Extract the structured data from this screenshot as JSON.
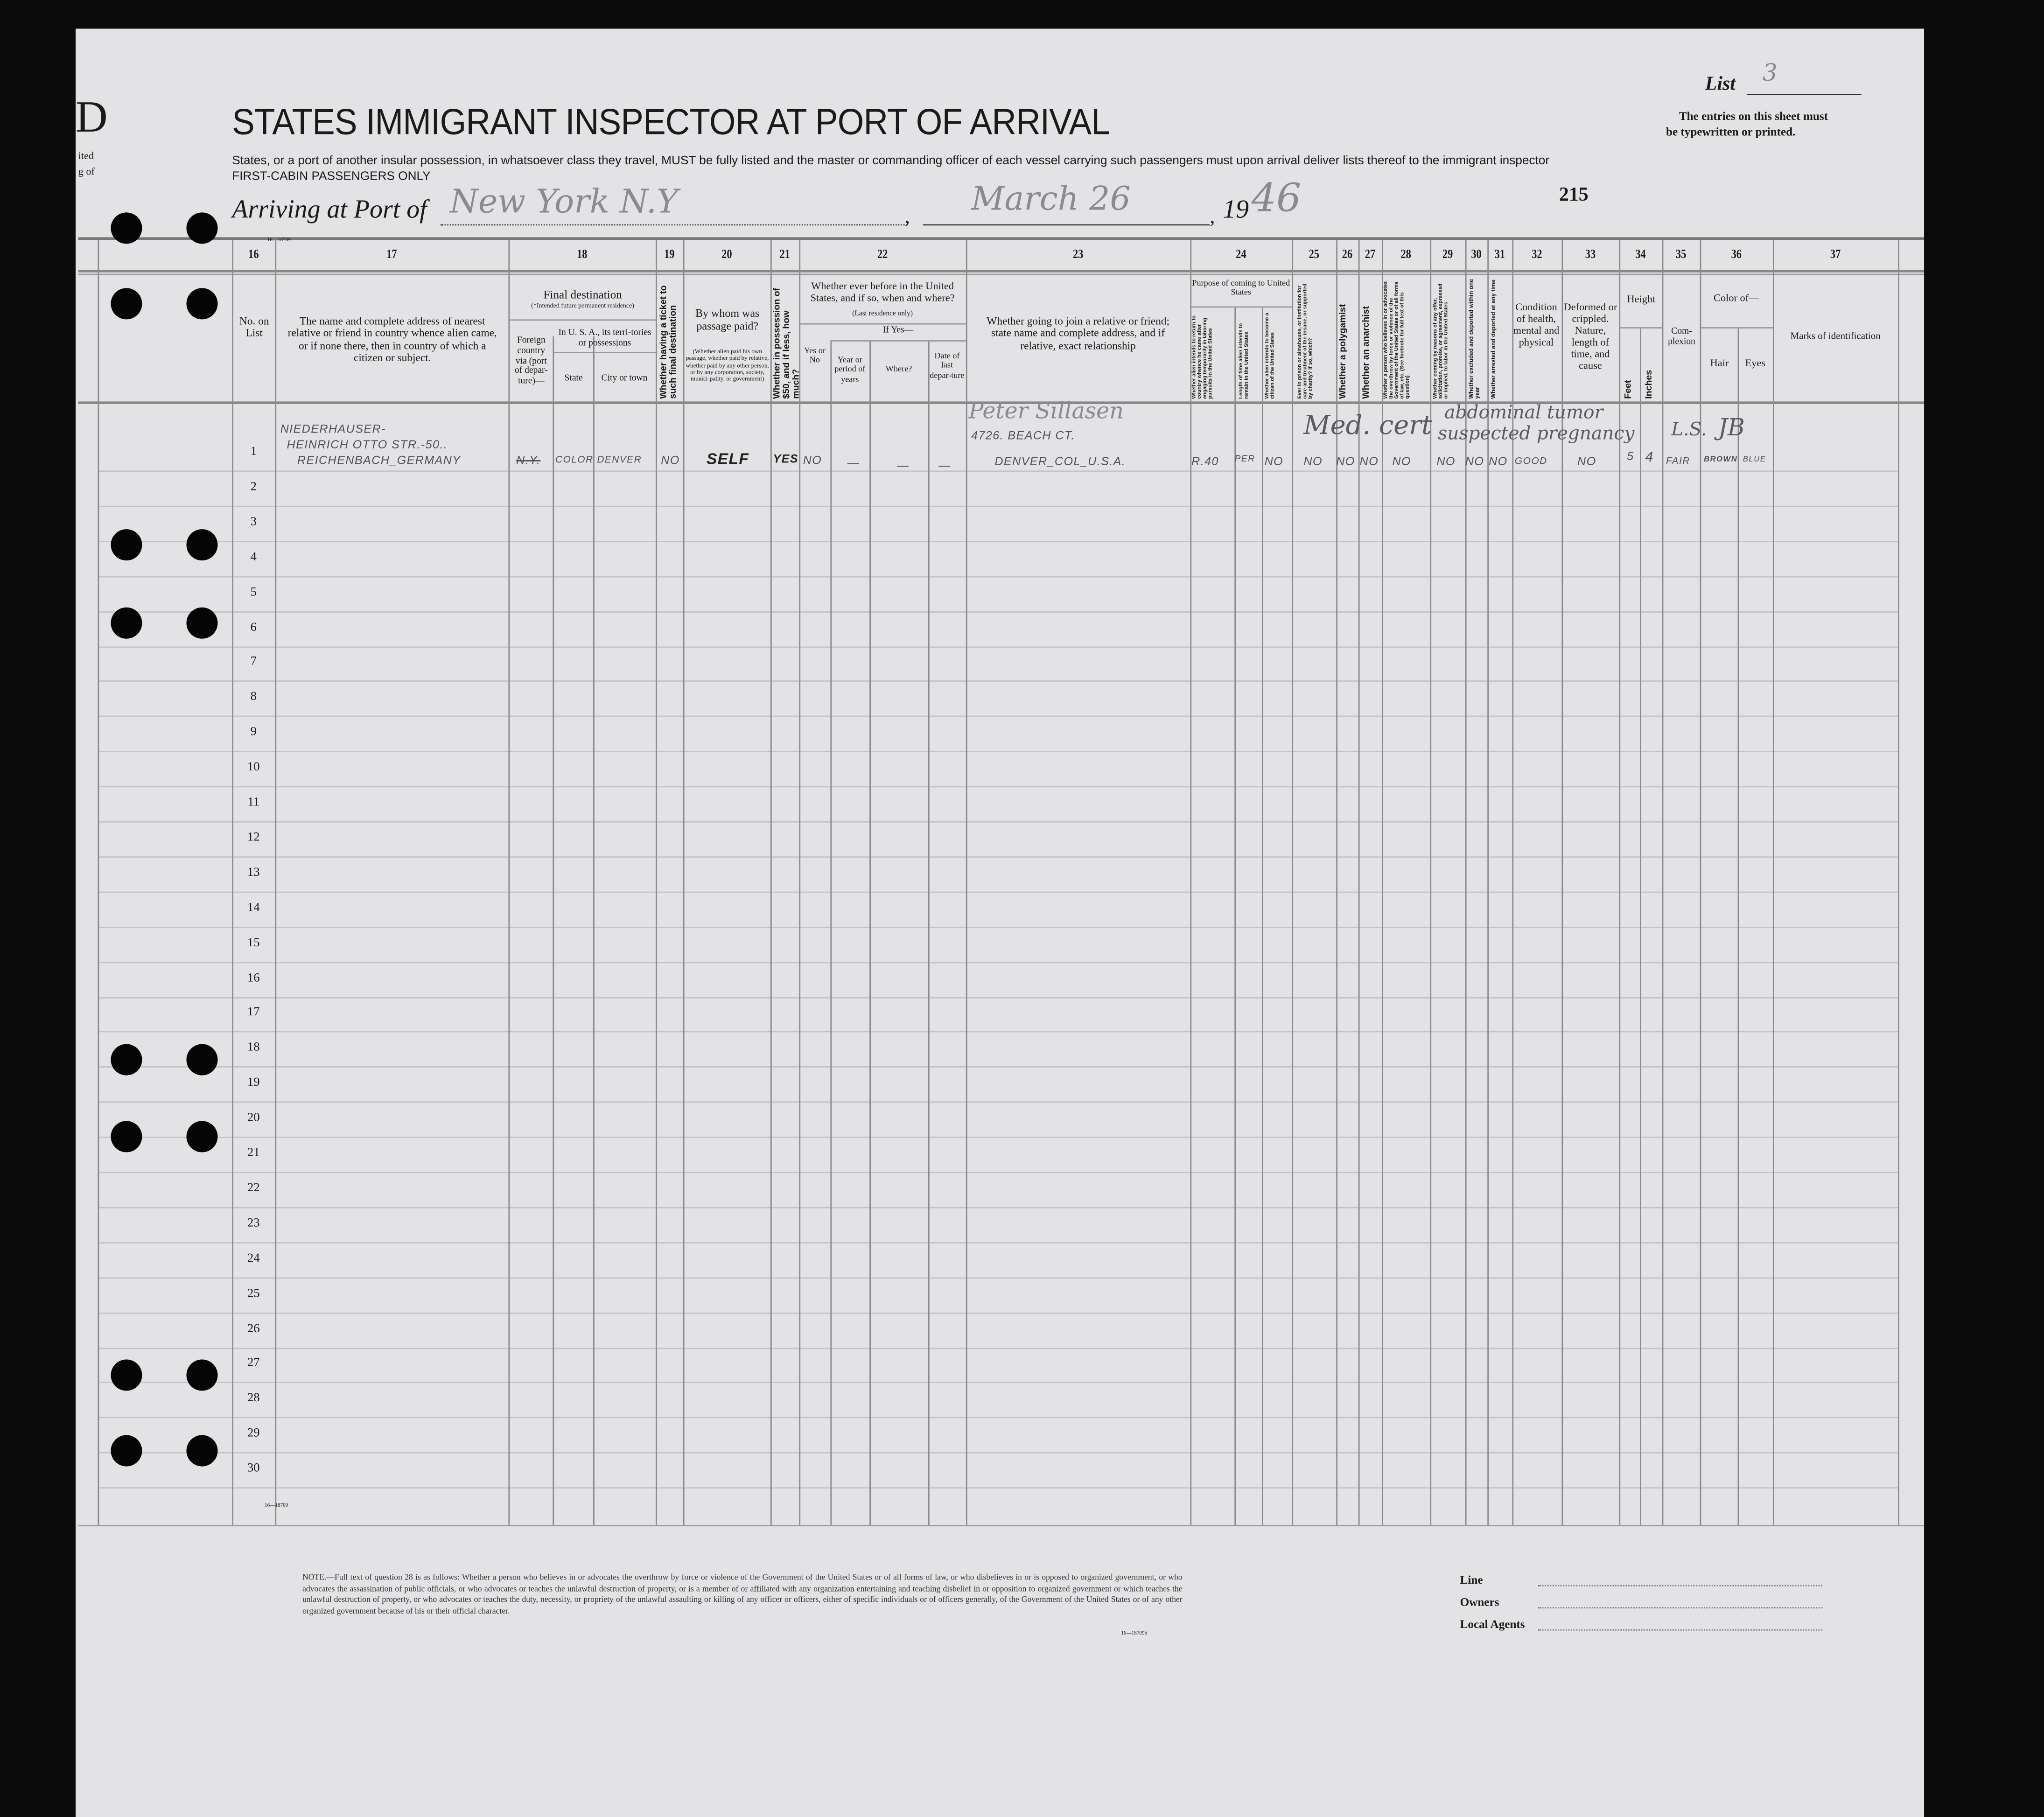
{
  "header": {
    "left_fragments": [
      "D",
      "ited",
      "g of"
    ],
    "title": "STATES IMMIGRANT INSPECTOR AT PORT OF ARRIVAL",
    "instruction": "States, or a port of another insular possession, in whatsoever class they travel, MUST be fully listed and the master or commanding officer of each vessel carrying such passengers must upon arrival deliver lists thereof to the immigrant inspector",
    "class_note": "FIRST-CABIN PASSENGERS ONLY",
    "list_label": "List",
    "list_number": "3",
    "entries_note_1": "The entries on this sheet must",
    "entries_note_2": "be typewritten or printed.",
    "arriving_label": "Arriving at Port of",
    "port": "New York N.Y",
    "date": "March 26",
    "year_prefix": "19",
    "year_suffix": "46",
    "sheet_number": "215",
    "form_code": "16—18709"
  },
  "columns": {
    "numbers": [
      "16",
      "17",
      "18",
      "19",
      "20",
      "21",
      "22",
      "23",
      "24",
      "25",
      "26",
      "27",
      "28",
      "29",
      "30",
      "31",
      "32",
      "33",
      "34",
      "35",
      "36",
      "37"
    ],
    "c16": "No. on List",
    "c17": "The name and complete address of nearest relative or friend in country whence alien came, or if none there, then in country of which a citizen or subject.",
    "c18_title": "Final destination",
    "c18_sub": "(*Intended future permanent residence)",
    "c18_foreign": "Foreign country via (port of depar-ture)—",
    "c18_usa": "In U. S. A., its terri-tories or possessions",
    "c18_state": "State",
    "c18_city": "City or town",
    "c19": "Whether having a ticket to such final destination",
    "c20_title": "By whom was passage paid?",
    "c20_sub": "(Whether alien paid his own passage, whether paid by relative, whether paid by any other person, or by any corporation, society, munici-pality, or government)",
    "c21": "Whether in possession of $50, and if less, how much?",
    "c22_title": "Whether ever before in the United States, and if so, when and where?",
    "c22_sub": "(Last residence only)",
    "c22_ifyes": "If Yes—",
    "c22_yesno": "Yes or No",
    "c22_year": "Year or period of years",
    "c22_where": "Where?",
    "c22_date": "Date of last depar-ture",
    "c23": "Whether going to join a relative or friend; state name and complete address, and if relative, exact relationship",
    "c24_title": "Purpose of coming to United States",
    "c24_a": "Whether alien intends to return to country whence he came after engaging temporarily in laboring pursuits in the United States",
    "c24_b": "Length of time alien intends to remain in the United States",
    "c24_c": "Whether alien intends to become a citizen of the United States",
    "c25": "Ever in prison or almshouse, or institution for care and treatment of the insane, or supported by charity? If so, which?",
    "c26": "Whether a polygamist",
    "c27": "Whether an anarchist",
    "c28": "Whether a person who believes in or advocates the overthrow by force or violence of the Government of the United States or of all forms of law, etc. (See footnote for full text of this question)",
    "c29": "Whether coming by reasons of any offer, solicitation, promise, or agreement, expressed or implied, to labor in the United States",
    "c30": "Whether excluded and deported within one year",
    "c31": "Whether arrested and deported at any time",
    "c32": "Condition of health, mental and physical",
    "c33": "Deformed or crippled. Nature, length of time, and cause",
    "c34_title": "Height",
    "c34_feet": "Feet",
    "c34_inches": "Inches",
    "c35": "Com-plexion",
    "c36_title": "Color of—",
    "c36_hair": "Hair",
    "c36_eyes": "Eyes",
    "c37": "Marks of identification"
  },
  "row_numbers": [
    "1",
    "2",
    "3",
    "4",
    "5",
    "6",
    "7",
    "8",
    "9",
    "10",
    "11",
    "12",
    "13",
    "14",
    "15",
    "16",
    "17",
    "18",
    "19",
    "20",
    "21",
    "22",
    "23",
    "24",
    "25",
    "26",
    "27",
    "28",
    "29",
    "30"
  ],
  "entry_1": {
    "relative_line1": "NIEDERHAUSER-",
    "relative_line2": "HEINRICH OTTO STR.-50..",
    "relative_line3": "REICHENBACH_GERMANY",
    "foreign_country": "N.Y.",
    "state": "COLOR",
    "city": "DENVER",
    "ticket": "NO",
    "passage_paid_by": "SELF",
    "has_50": "YES",
    "before_in_us": "NO",
    "year": "—",
    "where": "—",
    "date_departure": "—",
    "joining_name": "Peter Sillasen",
    "joining_address": "4726. BEACH CT.",
    "joining_city": "DENVER_COL_U.S.A.",
    "return_intent": "R.40",
    "length_stay": "PER",
    "citizen_intent": "NO",
    "prison": "NO",
    "polygamist": "NO",
    "anarchist": "NO",
    "q28": "NO",
    "q29": "NO",
    "q30": "NO",
    "q31": "NO",
    "health": "GOOD",
    "deformed": "NO",
    "feet": "5",
    "inches": "4",
    "complexion": "FAIR",
    "hair": "BROWN",
    "eyes": "BLUE",
    "annotation_med": "Med. cert",
    "annotation_1": "abdominal tumor",
    "annotation_2": "suspected pregnancy",
    "annotation_initials": "L.S.",
    "annotation_initials_2": "JB"
  },
  "footer": {
    "note": "NOTE.—Full text of question 28 is as follows: Whether a person who believes in or advocates the overthrow by force or violence of the Government of the United States or of all forms of law, or who disbelieves in or is opposed to organized government, or who advocates the assassination of public officials, or who advocates or teaches the unlawful destruction of property, or is a member of or affiliated with any organization entertaining and teaching disbelief in or opposition to organized government or which teaches the unlawful destruction of property, or who advocates or teaches the duty, necessity, or propriety of the unlawful assaulting or killing of any officer or officers, either of specific individuals or of officers generally, of the Government of the United States or of any other organized government because of his or their official character.",
    "note_code": "16—18709b",
    "line_label": "Line",
    "owners_label": "Owners",
    "agents_label": "Local Agents"
  }
}
